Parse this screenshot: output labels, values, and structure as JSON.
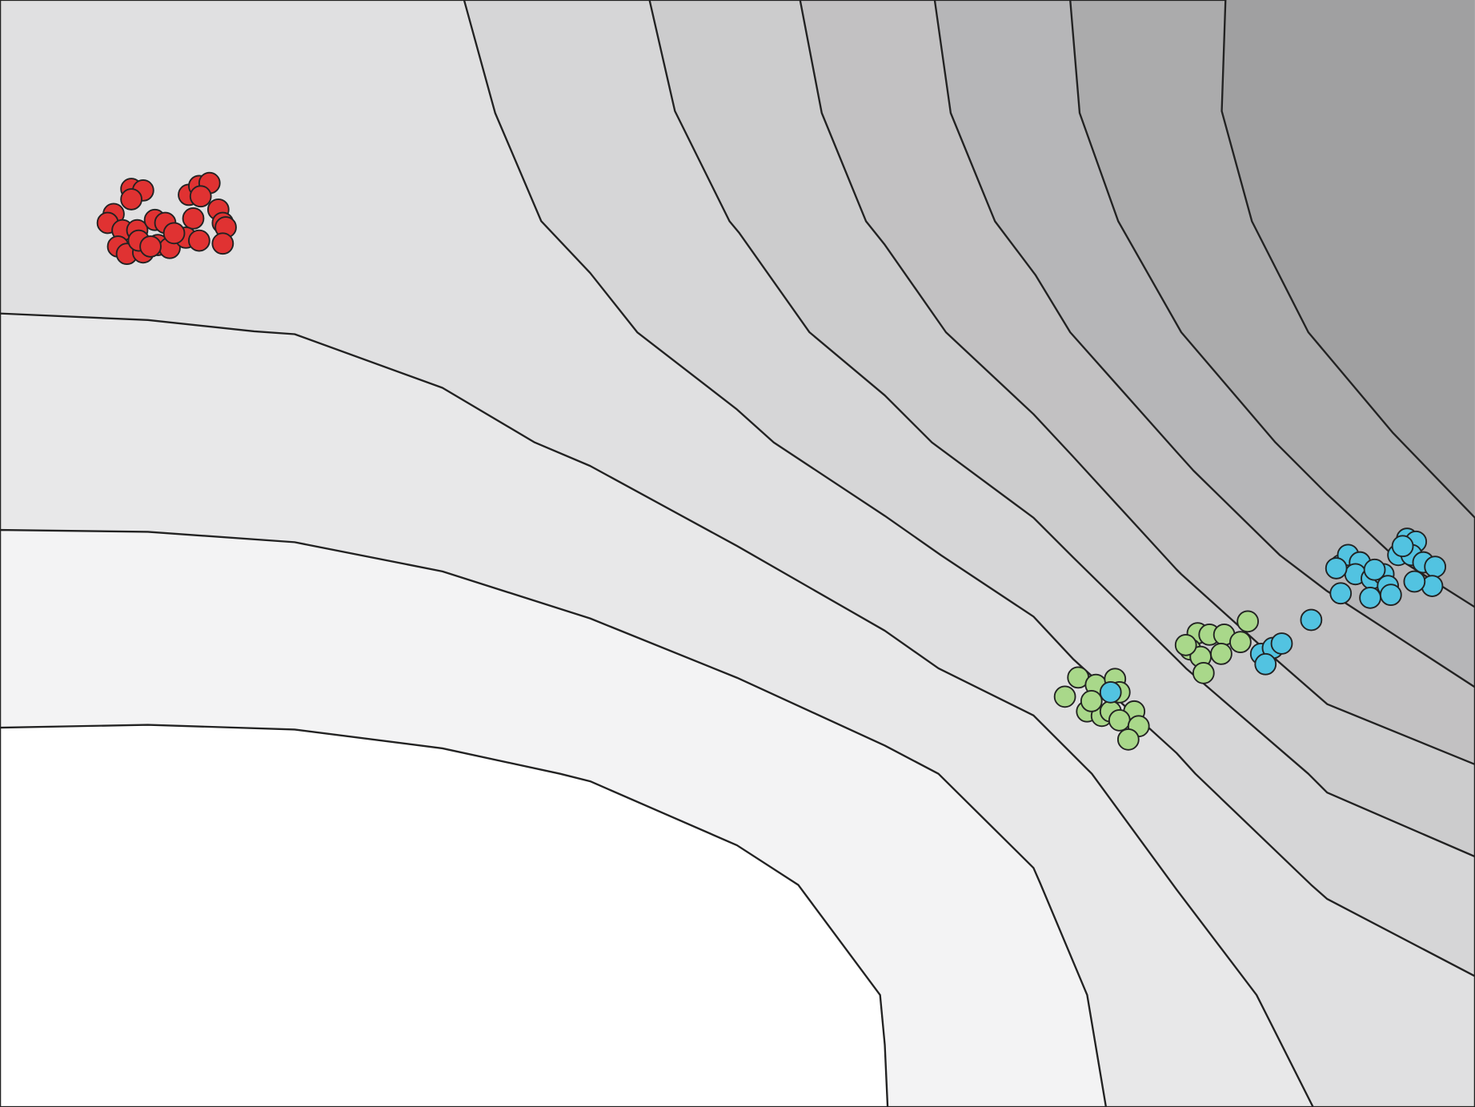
{
  "chart_data": {
    "type": "scatter",
    "xlim": [
      0,
      100
    ],
    "ylim": [
      0,
      75
    ],
    "series": [
      {
        "color": "#e03232",
        "x": [
          8.9,
          9.7,
          8.9,
          7.7,
          7.3,
          8.3,
          9.3,
          8.0,
          8.6,
          9.7,
          10.5,
          11.2,
          10.7,
          11.5,
          12.8,
          13.5,
          14.2,
          13.6,
          14.8,
          13.1,
          15.1,
          15.3,
          12.6,
          13.5,
          15.1,
          9.4,
          10.2,
          11.8
        ],
        "values": [
          62.2,
          62.1,
          61.5,
          60.5,
          59.9,
          59.4,
          59.4,
          58.3,
          57.8,
          57.9,
          60.1,
          59.9,
          58.4,
          58.2,
          61.8,
          62.4,
          62.6,
          61.7,
          60.8,
          60.2,
          59.9,
          59.6,
          58.9,
          58.7,
          58.5,
          58.7,
          58.3,
          59.2
        ]
      },
      {
        "color": "#a9d88a",
        "x": [
          73.1,
          74.3,
          75.6,
          75.9,
          72.2,
          73.7,
          74.7,
          75.3,
          76.9,
          75.9,
          77.2,
          76.5,
          74.0,
          81.2,
          82.0,
          83.0,
          84.6,
          84.1,
          80.7,
          81.4,
          82.8,
          81.6,
          80.4
        ],
        "values": [
          29.1,
          28.6,
          29.0,
          28.1,
          27.8,
          26.8,
          26.5,
          26.8,
          26.8,
          26.2,
          25.8,
          24.9,
          27.5,
          32.1,
          32.0,
          32.0,
          32.9,
          31.5,
          31.0,
          30.5,
          30.7,
          29.4,
          31.3
        ]
      },
      {
        "color": "#52c3e1",
        "x": [
          75.3,
          85.5,
          86.3,
          86.9,
          85.8,
          88.9,
          90.9,
          91.4,
          92.2,
          91.9,
          93.0,
          93.8,
          94.8,
          95.4,
          96.0,
          95.7,
          96.5,
          97.3,
          97.1,
          95.9,
          94.1,
          92.9,
          94.3,
          90.9,
          90.6,
          93.2,
          95.1
        ],
        "values": [
          28.1,
          30.7,
          31.1,
          31.4,
          30.0,
          33.0,
          36.7,
          37.4,
          36.9,
          36.1,
          35.8,
          36.1,
          37.4,
          38.5,
          38.3,
          37.4,
          36.9,
          36.6,
          35.3,
          35.6,
          35.3,
          34.5,
          34.7,
          34.8,
          36.5,
          36.4,
          38.0
        ]
      }
    ]
  }
}
